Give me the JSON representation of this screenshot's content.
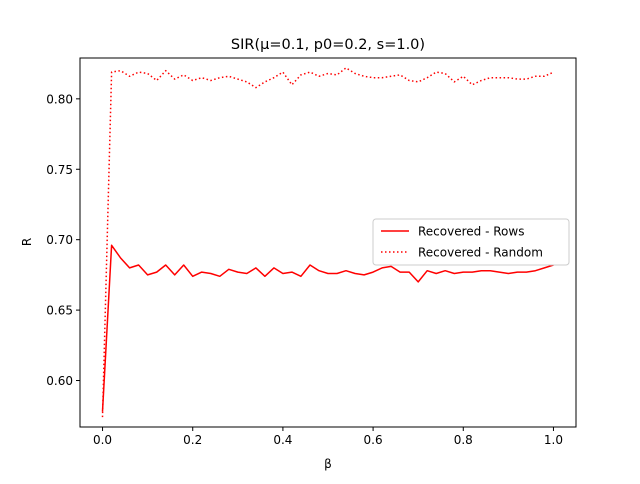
{
  "chart_data": {
    "type": "line",
    "title": "SIR(μ=0.1, p0=0.2, s=1.0)",
    "xlabel": "β",
    "ylabel": "R",
    "xlim": [
      -0.05,
      1.05
    ],
    "ylim": [
      0.567,
      0.829
    ],
    "xticks": [
      0.0,
      0.2,
      0.4,
      0.6,
      0.8,
      1.0
    ],
    "xtick_labels": [
      "0.0",
      "0.2",
      "0.4",
      "0.6",
      "0.8",
      "1.0"
    ],
    "yticks": [
      0.6,
      0.65,
      0.7,
      0.75,
      0.8
    ],
    "ytick_labels": [
      "0.60",
      "0.65",
      "0.70",
      "0.75",
      "0.80"
    ],
    "grid": false,
    "legend_position": "center-right",
    "x": [
      0.0,
      0.02,
      0.04,
      0.06,
      0.08,
      0.1,
      0.12,
      0.14,
      0.16,
      0.18,
      0.2,
      0.22,
      0.24,
      0.26,
      0.28,
      0.3,
      0.32,
      0.34,
      0.36,
      0.38,
      0.4,
      0.42,
      0.44,
      0.46,
      0.48,
      0.5,
      0.52,
      0.54,
      0.56,
      0.58,
      0.6,
      0.62,
      0.64,
      0.66,
      0.68,
      0.7,
      0.72,
      0.74,
      0.76,
      0.78,
      0.8,
      0.82,
      0.84,
      0.86,
      0.88,
      0.9,
      0.92,
      0.94,
      0.96,
      0.98,
      1.0
    ],
    "series": [
      {
        "name": "Recovered - Rows",
        "style": "solid",
        "color": "#ff0000",
        "values": [
          0.578,
          0.696,
          0.687,
          0.68,
          0.682,
          0.675,
          0.677,
          0.682,
          0.675,
          0.682,
          0.674,
          0.677,
          0.676,
          0.674,
          0.679,
          0.677,
          0.676,
          0.68,
          0.674,
          0.68,
          0.676,
          0.677,
          0.674,
          0.682,
          0.678,
          0.676,
          0.676,
          0.678,
          0.676,
          0.675,
          0.677,
          0.68,
          0.681,
          0.677,
          0.677,
          0.67,
          0.678,
          0.676,
          0.678,
          0.676,
          0.677,
          0.677,
          0.678,
          0.678,
          0.677,
          0.676,
          0.677,
          0.677,
          0.678,
          0.68,
          0.682
        ]
      },
      {
        "name": "Recovered - Random",
        "style": "dotted",
        "color": "#ff0000",
        "values": [
          0.574,
          0.819,
          0.82,
          0.816,
          0.819,
          0.818,
          0.813,
          0.82,
          0.814,
          0.817,
          0.813,
          0.815,
          0.813,
          0.815,
          0.816,
          0.814,
          0.812,
          0.808,
          0.812,
          0.815,
          0.819,
          0.81,
          0.817,
          0.819,
          0.816,
          0.818,
          0.817,
          0.822,
          0.818,
          0.816,
          0.815,
          0.815,
          0.816,
          0.817,
          0.813,
          0.812,
          0.815,
          0.819,
          0.818,
          0.812,
          0.816,
          0.81,
          0.813,
          0.815,
          0.815,
          0.815,
          0.814,
          0.814,
          0.816,
          0.816,
          0.819
        ]
      }
    ]
  }
}
